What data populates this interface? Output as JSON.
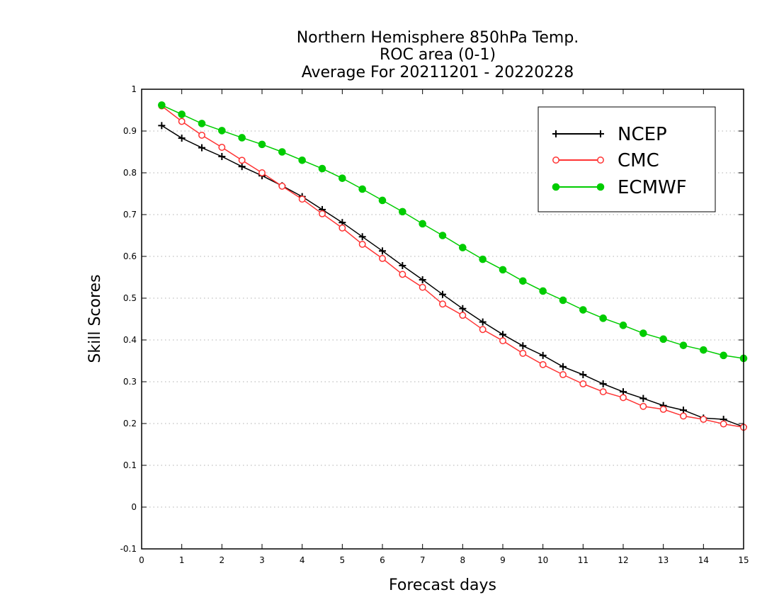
{
  "chart_data": {
    "type": "line",
    "title_lines": [
      "Northern Hemisphere 850hPa Temp.",
      "ROC area (0-1)",
      "Average For 20211201 - 20220228"
    ],
    "xlabel": "Forecast days",
    "ylabel": "Skill Scores",
    "xlim": [
      0,
      15
    ],
    "ylim": [
      -0.1,
      1
    ],
    "x_ticks": [
      0,
      1,
      2,
      3,
      4,
      5,
      6,
      7,
      8,
      9,
      10,
      11,
      12,
      13,
      14,
      15
    ],
    "y_ticks": [
      -0.1,
      0,
      0.1,
      0.2,
      0.3,
      0.4,
      0.5,
      0.6,
      0.7,
      0.8,
      0.9,
      1
    ],
    "y_tick_labels": [
      "-0.1",
      "0",
      "0.1",
      "0.2",
      "0.3",
      "0.4",
      "0.5",
      "0.6",
      "0.7",
      "0.8",
      "0.9",
      "1"
    ],
    "grid": "horizontal dotted",
    "legend_position": "top-right",
    "x": [
      0.5,
      1,
      1.5,
      2,
      2.5,
      3,
      3.5,
      4,
      4.5,
      5,
      5.5,
      6,
      6.5,
      7,
      7.5,
      8,
      8.5,
      9,
      9.5,
      10,
      10.5,
      11,
      11.5,
      12,
      12.5,
      13,
      13.5,
      14,
      14.5,
      15
    ],
    "series": [
      {
        "name": "NCEP",
        "color": "#000000",
        "marker": "plus",
        "values": [
          0.913,
          0.883,
          0.86,
          0.839,
          0.815,
          0.793,
          0.769,
          0.743,
          0.712,
          0.681,
          0.647,
          0.613,
          0.578,
          0.544,
          0.509,
          0.475,
          0.443,
          0.413,
          0.386,
          0.363,
          0.336,
          0.317,
          0.295,
          0.276,
          0.26,
          0.243,
          0.232,
          0.213,
          0.21,
          0.192
        ]
      },
      {
        "name": "CMC",
        "color": "#ff3333",
        "marker": "open-circle",
        "values": [
          0.96,
          0.923,
          0.89,
          0.861,
          0.83,
          0.8,
          0.768,
          0.737,
          0.702,
          0.668,
          0.629,
          0.595,
          0.557,
          0.526,
          0.486,
          0.459,
          0.425,
          0.398,
          0.368,
          0.341,
          0.317,
          0.295,
          0.276,
          0.262,
          0.241,
          0.234,
          0.218,
          0.21,
          0.199,
          0.191
        ]
      },
      {
        "name": "ECMWF",
        "color": "#00cc00",
        "marker": "filled-circle",
        "values": [
          0.962,
          0.94,
          0.918,
          0.901,
          0.884,
          0.868,
          0.85,
          0.83,
          0.81,
          0.787,
          0.761,
          0.734,
          0.707,
          0.678,
          0.65,
          0.621,
          0.593,
          0.568,
          0.541,
          0.517,
          0.495,
          0.472,
          0.452,
          0.435,
          0.416,
          0.402,
          0.387,
          0.376,
          0.363,
          0.356
        ]
      }
    ]
  }
}
